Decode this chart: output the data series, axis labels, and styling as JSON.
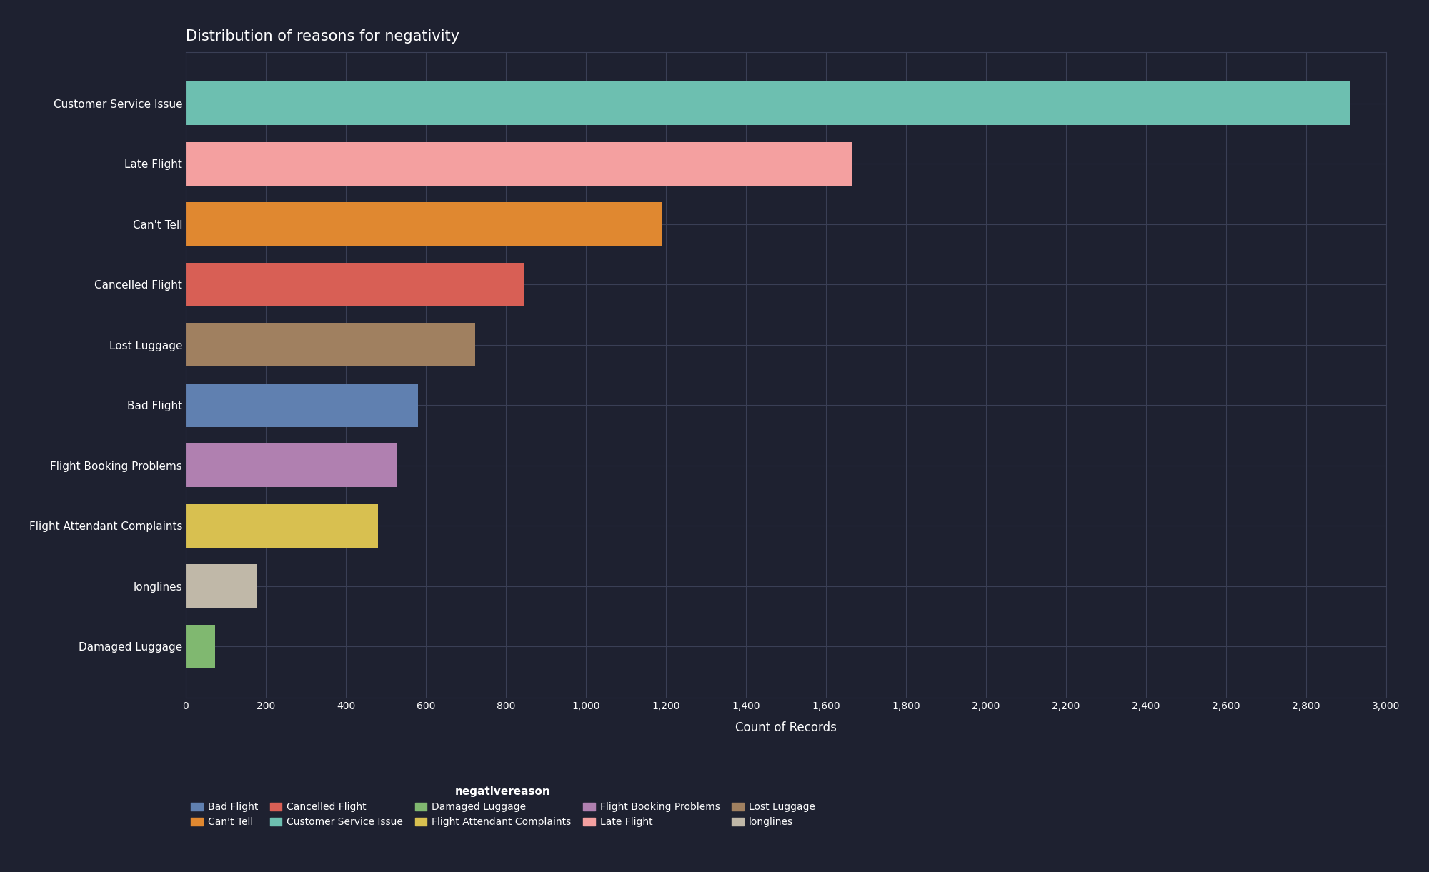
{
  "title": "Distribution of reasons for negativity",
  "xlabel": "Count of Records",
  "ylabel": "negativereason",
  "background_color": "#1e2130",
  "grid_color": "#3a3f55",
  "text_color": "#ffffff",
  "categories": [
    "Damaged Luggage",
    "longlines",
    "Flight Attendant Complaints",
    "Flight Booking Problems",
    "Bad Flight",
    "Lost Luggage",
    "Cancelled Flight",
    "Can't Tell",
    "Late Flight",
    "Customer Service Issue"
  ],
  "values": [
    74,
    176,
    481,
    529,
    580,
    724,
    847,
    1190,
    1665,
    2910
  ],
  "colors": [
    "#80b870",
    "#c0b8a8",
    "#d8c050",
    "#b080b0",
    "#6080b0",
    "#a08060",
    "#d85f55",
    "#e08830",
    "#f4a0a0",
    "#6dbfb0"
  ],
  "xlim": [
    0,
    3000
  ],
  "xticks": [
    0,
    200,
    400,
    600,
    800,
    1000,
    1200,
    1400,
    1600,
    1800,
    2000,
    2200,
    2400,
    2600,
    2800,
    3000
  ],
  "legend_title": "negativereason",
  "legend_labels": [
    "Bad Flight",
    "Can't Tell",
    "Cancelled Flight",
    "Customer Service Issue",
    "Damaged Luggage",
    "Flight Attendant Complaints",
    "Flight Booking Problems",
    "Late Flight",
    "Lost Luggage",
    "longlines"
  ],
  "legend_colors": [
    "#6080b0",
    "#e08830",
    "#d85f55",
    "#6dbfb0",
    "#80b870",
    "#d8c050",
    "#b080b0",
    "#f4a0a0",
    "#a08060",
    "#c0b8a8"
  ],
  "title_fontsize": 15,
  "label_fontsize": 11,
  "tick_fontsize": 10,
  "legend_fontsize": 10,
  "bar_height": 0.72
}
